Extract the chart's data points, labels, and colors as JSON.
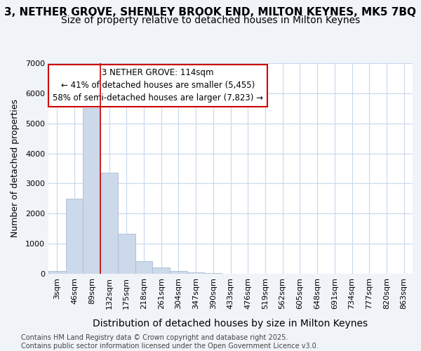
{
  "title_line1": "3, NETHER GROVE, SHENLEY BROOK END, MILTON KEYNES, MK5 7BQ",
  "title_line2": "Size of property relative to detached houses in Milton Keynes",
  "xlabel": "Distribution of detached houses by size in Milton Keynes",
  "ylabel": "Number of detached properties",
  "categories": [
    "3sqm",
    "46sqm",
    "89sqm",
    "132sqm",
    "175sqm",
    "218sqm",
    "261sqm",
    "304sqm",
    "347sqm",
    "390sqm",
    "433sqm",
    "476sqm",
    "519sqm",
    "562sqm",
    "605sqm",
    "648sqm",
    "691sqm",
    "734sqm",
    "777sqm",
    "820sqm",
    "863sqm"
  ],
  "values": [
    100,
    2500,
    5500,
    3350,
    1320,
    420,
    220,
    100,
    55,
    20,
    8,
    2,
    0,
    0,
    0,
    0,
    0,
    0,
    0,
    0,
    0
  ],
  "bar_color": "#ccd9ea",
  "bar_edge_color": "#aabdd4",
  "vline_color": "#cc0000",
  "vline_x_index": 2.5,
  "ylim": [
    0,
    7000
  ],
  "annotation_text": "3 NETHER GROVE: 114sqm\n← 41% of detached houses are smaller (5,455)\n58% of semi-detached houses are larger (7,823) →",
  "annotation_box_facecolor": "#ffffff",
  "annotation_box_edgecolor": "#cc0000",
  "fig_bg_color": "#f0f4f8",
  "plot_bg_color": "#ffffff",
  "grid_color": "#c8d8ec",
  "footer_text": "Contains HM Land Registry data © Crown copyright and database right 2025.\nContains public sector information licensed under the Open Government Licence v3.0.",
  "title1_fontsize": 11,
  "title2_fontsize": 10,
  "ylabel_fontsize": 9,
  "xlabel_fontsize": 10,
  "tick_fontsize": 8,
  "footer_fontsize": 7,
  "annot_fontsize": 8.5
}
